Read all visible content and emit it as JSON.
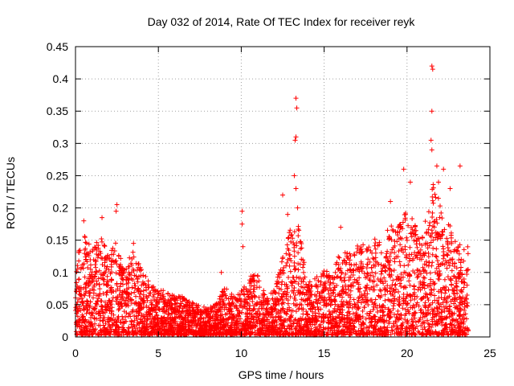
{
  "chart_data": {
    "type": "scatter",
    "title": "Day 032 of 2014, Rate Of TEC Index for receiver reyk",
    "xlabel": "GPS time / hours",
    "ylabel": "ROTI / TECUs",
    "xlim": [
      0,
      25
    ],
    "ylim": [
      0,
      0.45
    ],
    "xticks": [
      0,
      5,
      10,
      15,
      20,
      25
    ],
    "xtick_labels": [
      "0",
      "5",
      "10",
      "15",
      "20",
      "25"
    ],
    "yticks": [
      0,
      0.05,
      0.1,
      0.15,
      0.2,
      0.25,
      0.3,
      0.35,
      0.4,
      0.45
    ],
    "ytick_labels": [
      "0",
      "0.05",
      "0.1",
      "0.15",
      "0.2",
      "0.25",
      "0.3",
      "0.35",
      "0.4",
      "0.45"
    ],
    "grid": true,
    "marker": "+",
    "color": "#ff0000",
    "series": [
      {
        "name": "ROTI",
        "envelope_hours": [
          0,
          0.5,
          1,
          1.5,
          2,
          2.5,
          3,
          3.5,
          4,
          4.5,
          5,
          5.5,
          6,
          6.5,
          7,
          7.5,
          8,
          8.5,
          9,
          9.5,
          10,
          10.5,
          11,
          11.5,
          12,
          12.5,
          13,
          13.5,
          14,
          14.5,
          15,
          15.5,
          16,
          16.5,
          17,
          17.5,
          18,
          18.5,
          19,
          19.5,
          20,
          20.5,
          21,
          21.5,
          22,
          22.5,
          23,
          23.5,
          23.7
        ],
        "envelope_max": [
          0.13,
          0.16,
          0.13,
          0.16,
          0.13,
          0.15,
          0.1,
          0.14,
          0.1,
          0.08,
          0.07,
          0.07,
          0.06,
          0.06,
          0.05,
          0.05,
          0.04,
          0.05,
          0.08,
          0.06,
          0.07,
          0.09,
          0.1,
          0.06,
          0.07,
          0.12,
          0.17,
          0.17,
          0.08,
          0.09,
          0.1,
          0.1,
          0.13,
          0.13,
          0.14,
          0.14,
          0.15,
          0.15,
          0.17,
          0.17,
          0.2,
          0.17,
          0.16,
          0.24,
          0.21,
          0.18,
          0.14,
          0.14,
          0.14
        ],
        "spikes": [
          {
            "x": 0.5,
            "y": 0.18
          },
          {
            "x": 1.6,
            "y": 0.185
          },
          {
            "x": 2.5,
            "y": 0.205
          },
          {
            "x": 2.45,
            "y": 0.195
          },
          {
            "x": 3.5,
            "y": 0.145
          },
          {
            "x": 8.8,
            "y": 0.1
          },
          {
            "x": 10.05,
            "y": 0.195
          },
          {
            "x": 10.05,
            "y": 0.175
          },
          {
            "x": 10.1,
            "y": 0.14
          },
          {
            "x": 12.5,
            "y": 0.22
          },
          {
            "x": 12.8,
            "y": 0.19
          },
          {
            "x": 13.3,
            "y": 0.37
          },
          {
            "x": 13.35,
            "y": 0.355
          },
          {
            "x": 13.3,
            "y": 0.31
          },
          {
            "x": 13.25,
            "y": 0.305
          },
          {
            "x": 13.2,
            "y": 0.25
          },
          {
            "x": 13.3,
            "y": 0.23
          },
          {
            "x": 13.4,
            "y": 0.2
          },
          {
            "x": 16.0,
            "y": 0.17
          },
          {
            "x": 19.0,
            "y": 0.21
          },
          {
            "x": 19.8,
            "y": 0.26
          },
          {
            "x": 20.2,
            "y": 0.24
          },
          {
            "x": 21.5,
            "y": 0.42
          },
          {
            "x": 21.55,
            "y": 0.415
          },
          {
            "x": 21.5,
            "y": 0.35
          },
          {
            "x": 21.45,
            "y": 0.305
          },
          {
            "x": 21.5,
            "y": 0.29
          },
          {
            "x": 21.8,
            "y": 0.265
          },
          {
            "x": 22.2,
            "y": 0.26
          },
          {
            "x": 23.2,
            "y": 0.265
          },
          {
            "x": 21.9,
            "y": 0.24
          },
          {
            "x": 22.6,
            "y": 0.23
          }
        ]
      }
    ]
  }
}
